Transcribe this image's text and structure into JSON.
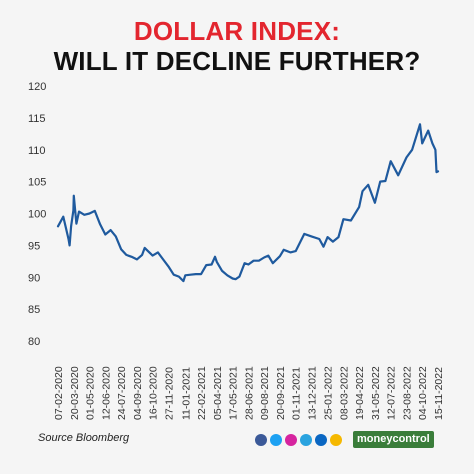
{
  "title": {
    "line1": "DOLLAR INDEX:",
    "line2": "WILL IT DECLINE FURTHER?"
  },
  "footer": {
    "source": "Source Bloomberg",
    "brand": "moneycontrol",
    "social_icons": [
      {
        "name": "facebook-icon",
        "color": "#3b5998"
      },
      {
        "name": "twitter-icon",
        "color": "#1da1f2"
      },
      {
        "name": "instagram-icon",
        "color": "#d6249f"
      },
      {
        "name": "telegram-icon",
        "color": "#2aa3df"
      },
      {
        "name": "linkedin-icon",
        "color": "#0a66c2"
      },
      {
        "name": "koo-icon",
        "color": "#f5b800"
      }
    ]
  },
  "colors": {
    "line": "#1f5a9e",
    "title_accent": "#e3262f",
    "brand_bg": "#3a7d3a",
    "background": "#f5f5f5"
  },
  "chart_data": {
    "type": "line",
    "title": "DOLLAR INDEX: WILL IT DECLINE FURTHER?",
    "xlabel": "",
    "ylabel": "",
    "ylim": [
      80,
      120
    ],
    "yticks": [
      80,
      85,
      90,
      95,
      100,
      105,
      110,
      115,
      120
    ],
    "xtick_labels": [
      "07-02-2020",
      "20-03-2020",
      "01-05-2020",
      "12-06-2020",
      "24-07-2020",
      "04-09-2020",
      "16-10-2020",
      "27-11-2020",
      "11-01-2021",
      "22-02-2021",
      "05-04-2021",
      "17-05-2021",
      "28-06-2021",
      "09-08-2021",
      "20-09-2021",
      "01-11-2021",
      "13-12-2021",
      "25-01-2022",
      "08-03-2022",
      "19-04-2022",
      "31-05-2022",
      "12-07-2022",
      "23-08-2022",
      "04-10-2022",
      "15-11-2022"
    ],
    "grid": false,
    "legend": "none",
    "series": [
      {
        "x": [
          "07-02-2020",
          "21-02-2020",
          "06-03-2020",
          "09-03-2020",
          "13-03-2020",
          "19-03-2020",
          "20-03-2020",
          "27-03-2020",
          "03-04-2020",
          "17-04-2020",
          "01-05-2020",
          "15-05-2020",
          "29-05-2020",
          "12-06-2020",
          "26-06-2020",
          "10-07-2020",
          "24-07-2020",
          "07-08-2020",
          "21-08-2020",
          "04-09-2020",
          "18-09-2020",
          "25-09-2020",
          "16-10-2020",
          "30-10-2020",
          "13-11-2020",
          "27-11-2020",
          "11-12-2020",
          "25-12-2020",
          "06-01-2021",
          "11-01-2021",
          "25-01-2021",
          "08-02-2021",
          "22-02-2021",
          "08-03-2021",
          "22-03-2021",
          "31-03-2021",
          "05-04-2021",
          "19-04-2021",
          "03-05-2021",
          "17-05-2021",
          "25-05-2021",
          "04-06-2021",
          "18-06-2021",
          "28-06-2021",
          "12-07-2021",
          "26-07-2021",
          "09-08-2021",
          "20-08-2021",
          "01-09-2021",
          "20-09-2021",
          "30-09-2021",
          "18-10-2021",
          "01-11-2021",
          "24-11-2021",
          "13-12-2021",
          "03-01-2022",
          "14-01-2022",
          "25-01-2022",
          "08-02-2022",
          "23-02-2022",
          "08-03-2022",
          "28-03-2022",
          "19-04-2022",
          "28-04-2022",
          "13-05-2022",
          "31-05-2022",
          "14-06-2022",
          "28-06-2022",
          "12-07-2022",
          "01-08-2022",
          "23-08-2022",
          "07-09-2022",
          "28-09-2022",
          "04-10-2022",
          "20-10-2022",
          "31-10-2022",
          "08-11-2022",
          "11-11-2022",
          "15-11-2022"
        ],
        "values": [
          98.0,
          99.5,
          96.0,
          95.0,
          98.0,
          100.5,
          102.8,
          98.4,
          100.3,
          99.8,
          100.0,
          100.4,
          98.3,
          96.7,
          97.4,
          96.4,
          94.4,
          93.5,
          93.2,
          92.8,
          93.5,
          94.6,
          93.4,
          93.9,
          92.8,
          91.7,
          90.4,
          90.1,
          89.4,
          90.3,
          90.4,
          90.5,
          90.5,
          91.9,
          92.0,
          93.2,
          92.4,
          91.0,
          90.3,
          89.8,
          89.7,
          90.1,
          92.2,
          92.0,
          92.6,
          92.6,
          93.1,
          93.4,
          92.2,
          93.3,
          94.3,
          93.9,
          94.1,
          96.8,
          96.4,
          96.0,
          94.8,
          96.3,
          95.6,
          96.3,
          99.1,
          98.9,
          101.0,
          103.5,
          104.5,
          101.7,
          105.0,
          105.1,
          108.2,
          106.0,
          108.8,
          110.0,
          114.0,
          111.0,
          113.0,
          111.0,
          110.0,
          106.5,
          106.6
        ]
      }
    ]
  }
}
